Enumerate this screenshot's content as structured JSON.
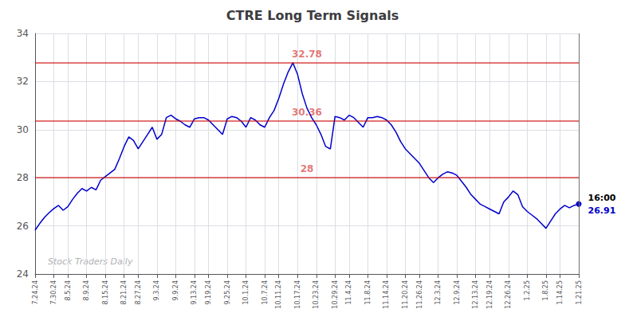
{
  "chart_data": {
    "type": "line",
    "title": "CTRE Long Term Signals",
    "watermark": "Stock Traders Daily",
    "end_labels": [
      "16:00",
      "26.91"
    ],
    "categories": [
      "7.24.24",
      null,
      null,
      null,
      "7.30.24",
      null,
      null,
      "8.5.24",
      null,
      null,
      null,
      "8.9.24",
      null,
      null,
      null,
      "8.15.24",
      null,
      null,
      null,
      "8.21.24",
      null,
      null,
      "8.27.24",
      null,
      null,
      null,
      "9.3.24",
      null,
      null,
      null,
      "9.9.24",
      null,
      null,
      null,
      "9.13.24",
      null,
      null,
      "9.19.24",
      null,
      null,
      null,
      "9.25.24",
      null,
      null,
      null,
      "10.1.24",
      null,
      null,
      null,
      "10.7.24",
      null,
      null,
      "10.11.24",
      null,
      null,
      null,
      "10.17.24",
      null,
      null,
      null,
      "10.23.24",
      null,
      null,
      null,
      "10.29.24",
      null,
      null,
      "11.4.24",
      null,
      null,
      null,
      "11.8.24",
      null,
      null,
      null,
      "11.14.24",
      null,
      null,
      null,
      "11.20.24",
      null,
      null,
      "11.26.24",
      null,
      null,
      null,
      "12.3.24",
      null,
      null,
      null,
      "12.9.24",
      null,
      null,
      null,
      "12.13.24",
      null,
      null,
      "12.19.24",
      null,
      null,
      null,
      "12.26.24",
      null,
      null,
      null,
      "1.2.25",
      null,
      null,
      null,
      "1.8.25",
      null,
      null,
      "1.14.25",
      null,
      null,
      null,
      "1.21.25"
    ],
    "values": [
      25.82,
      26.1,
      26.35,
      26.55,
      26.72,
      26.85,
      26.65,
      26.8,
      27.1,
      27.35,
      27.55,
      27.45,
      27.6,
      27.5,
      27.9,
      28.05,
      28.2,
      28.35,
      28.8,
      29.3,
      29.7,
      29.55,
      29.2,
      29.5,
      29.8,
      30.1,
      29.6,
      29.8,
      30.5,
      30.6,
      30.45,
      30.35,
      30.2,
      30.1,
      30.45,
      30.5,
      30.5,
      30.4,
      30.2,
      30.0,
      29.8,
      30.45,
      30.55,
      30.5,
      30.35,
      30.1,
      30.5,
      30.4,
      30.2,
      30.1,
      30.5,
      30.8,
      31.3,
      31.9,
      32.4,
      32.78,
      32.3,
      31.5,
      30.9,
      30.5,
      30.2,
      29.8,
      29.3,
      29.2,
      30.55,
      30.5,
      30.4,
      30.6,
      30.5,
      30.3,
      30.1,
      30.5,
      30.5,
      30.55,
      30.5,
      30.4,
      30.2,
      29.9,
      29.5,
      29.2,
      29.0,
      28.8,
      28.6,
      28.3,
      28.0,
      27.8,
      28.0,
      28.15,
      28.25,
      28.2,
      28.1,
      27.85,
      27.6,
      27.3,
      27.1,
      26.9,
      26.8,
      26.7,
      26.6,
      26.5,
      27.0,
      27.2,
      27.45,
      27.3,
      26.8,
      26.6,
      26.45,
      26.3,
      26.1,
      25.9,
      26.2,
      26.5,
      26.7,
      26.85,
      26.75,
      26.85,
      26.91
    ],
    "color": "#0000cc",
    "hlines": [
      {
        "value": 32.78,
        "label": "32.78",
        "color": "#cc0000"
      },
      {
        "value": 30.36,
        "label": "30.36",
        "color": "#cc0000"
      },
      {
        "value": 28.0,
        "label": "28",
        "color": "#cc0000"
      }
    ],
    "ylim": [
      24,
      34
    ],
    "yticks": [
      24,
      26,
      28,
      30,
      32,
      34
    ],
    "grid": true
  }
}
